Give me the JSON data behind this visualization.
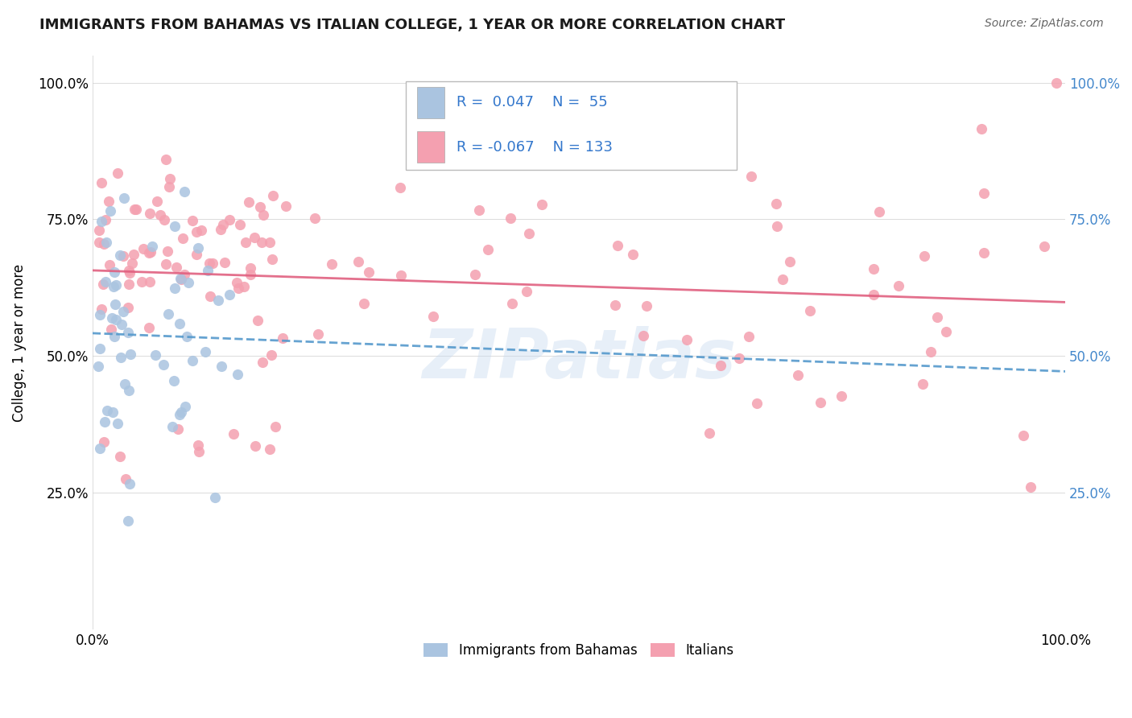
{
  "title": "IMMIGRANTS FROM BAHAMAS VS ITALIAN COLLEGE, 1 YEAR OR MORE CORRELATION CHART",
  "source_text": "Source: ZipAtlas.com",
  "ylabel": "College, 1 year or more",
  "blue_color": "#aac4e0",
  "blue_line_color": "#5599cc",
  "pink_color": "#f4a0b0",
  "pink_line_color": "#e06080",
  "watermark": "ZIPatlas",
  "r1": 0.047,
  "n1": 55,
  "r2": -0.067,
  "n2": 133
}
